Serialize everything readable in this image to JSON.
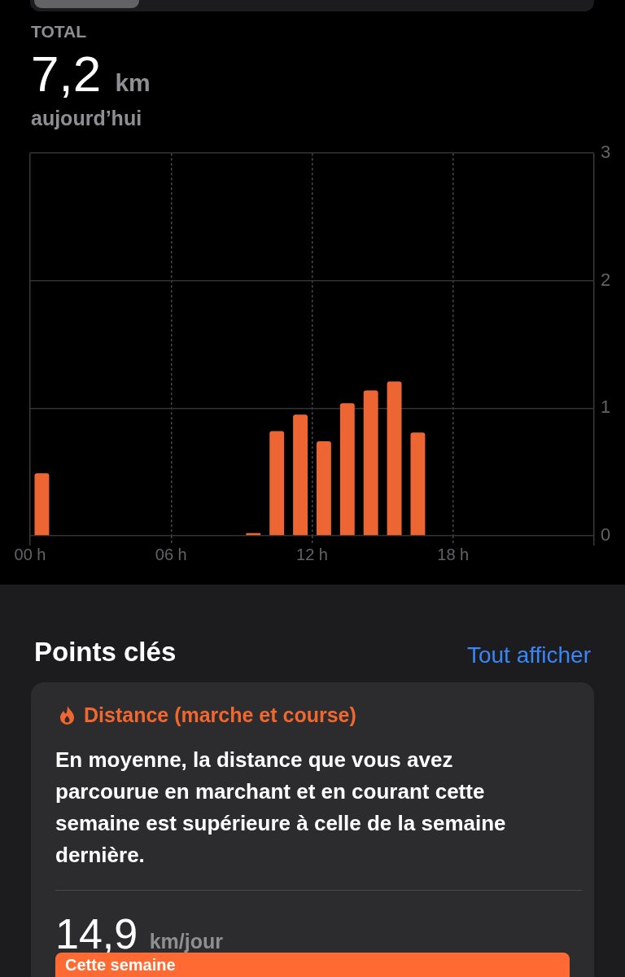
{
  "chart_data": {
    "type": "bar",
    "title": "TOTAL",
    "x": [
      0.5,
      9.5,
      10.5,
      11.5,
      12.5,
      13.5,
      14.5,
      15.5,
      16.5
    ],
    "values": [
      0.49,
      0.02,
      0.82,
      0.95,
      0.74,
      1.04,
      1.14,
      1.21,
      0.81
    ],
    "color": "#ee6534",
    "xlim": [
      0,
      24
    ],
    "xticks": [
      {
        "value": 0,
        "label": "00 h"
      },
      {
        "value": 6,
        "label": "06 h"
      },
      {
        "value": 12,
        "label": "12 h"
      },
      {
        "value": 18,
        "label": "18 h"
      },
      {
        "value": 24,
        "label": null
      }
    ],
    "ylim": [
      0,
      3
    ],
    "yticks": [
      0,
      1,
      2,
      3
    ],
    "grid": true,
    "annotations": [
      "7,2 km",
      "aujourd’hui",
      "Points clés",
      "Tout afficher",
      "Distance (marche et course)",
      "En moyenne, la distance que vous avez parcourue en marchant et en courant cette semaine est supérieure à celle de la semaine dernière.",
      "14,9 km/jour",
      "Cette semaine"
    ]
  }
}
